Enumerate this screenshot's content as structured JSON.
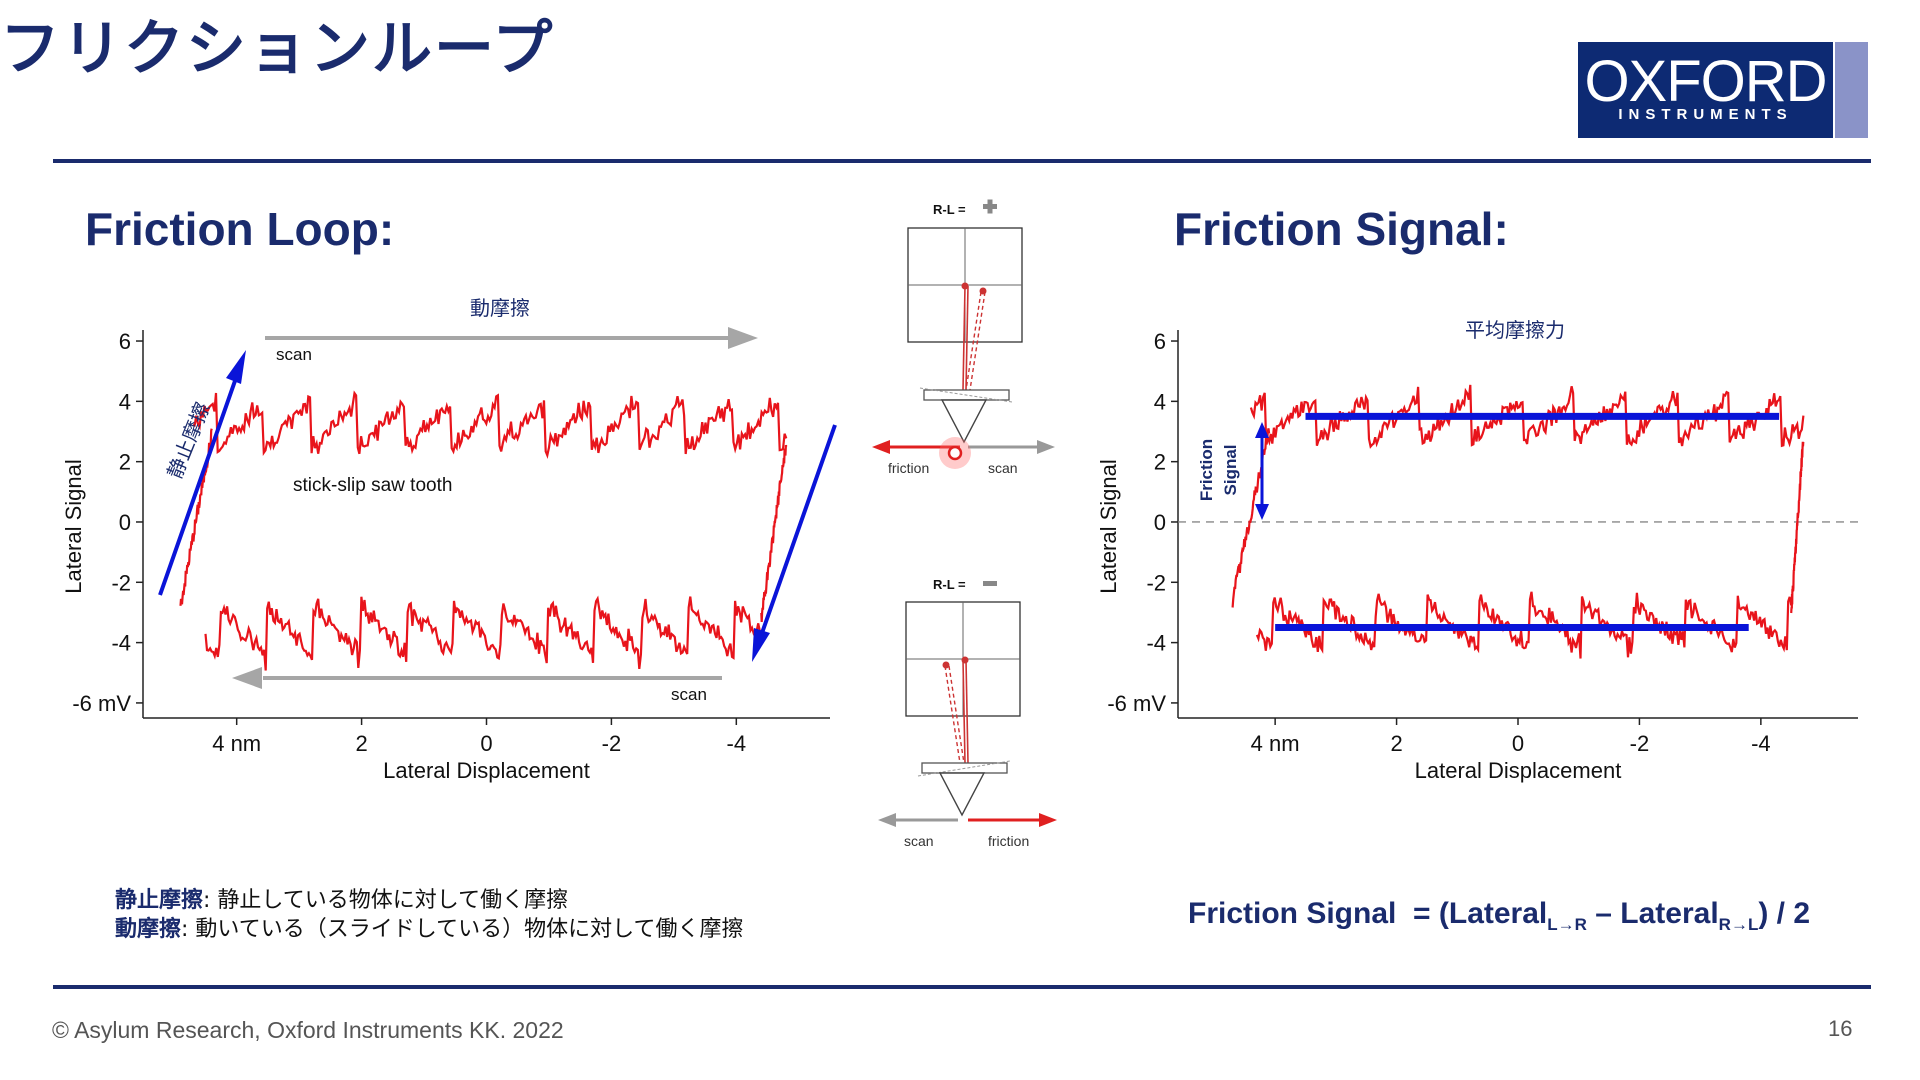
{
  "slide": {
    "title": "フリクションループ",
    "page_number": "16",
    "copyright": "© Asylum Research, Oxford Instruments KK. 2022"
  },
  "logo": {
    "brand": "OXFORD",
    "sub": "INSTRUMENTS",
    "color": "#0d2a73"
  },
  "left": {
    "section_title": "Friction Loop:",
    "annotations": {
      "kinetic": "動摩擦",
      "static": "静止摩擦",
      "scan_top": "scan",
      "scan_bottom": "scan",
      "sawtooth": "stick-slip saw tooth"
    }
  },
  "right": {
    "section_title": "Friction Signal:",
    "annotations": {
      "average": "平均摩擦力",
      "friction_signal": [
        "Friction",
        "Signal"
      ]
    }
  },
  "diagram": {
    "top": {
      "label": "R-L =",
      "friction": "friction",
      "scan": "scan"
    },
    "bottom": {
      "label": "R-L =",
      "friction": "friction",
      "scan": "scan"
    }
  },
  "definitions": [
    {
      "term": "静止摩擦",
      "text": ": 静止している物体に対して働く摩擦"
    },
    {
      "term": "動摩擦",
      "text": ": 動いている（スライドしている）物体に対して働く摩擦"
    }
  ],
  "formula": {
    "lhs": "Friction Signal",
    "eq": "= (Lateral",
    "sub1": "L→R",
    "minus": " – Lateral",
    "sub2": "R→L",
    "tail": ") / 2"
  },
  "chart_data": [
    {
      "type": "line",
      "xlabel": "Lateral Displacement",
      "ylabel": "Lateral Signal",
      "x_ticks": [
        "4 nm",
        "2",
        "0",
        "-2",
        "-4"
      ],
      "x_tick_values": [
        4,
        2,
        0,
        -2,
        -4
      ],
      "y_ticks": [
        "6",
        "4",
        "2",
        "0",
        "-2",
        "-4",
        "-6 mV"
      ],
      "y_tick_values": [
        6,
        4,
        2,
        0,
        -2,
        -4,
        -6
      ],
      "xlim": [
        5.5,
        -5.5
      ],
      "ylim": [
        -6.5,
        6.2
      ],
      "line_color": "#e8141b",
      "trace": {
        "upper_mean": 3.2,
        "lower_mean": -3.6,
        "tooth_amplitude": 1.6,
        "tooth_period_nm": 0.75,
        "upper_x_range": [
          4.7,
          -4.8
        ],
        "lower_x_range": [
          4.5,
          -4.4
        ],
        "seed": 7
      }
    },
    {
      "type": "line",
      "xlabel": "Lateral Displacement",
      "ylabel": "Lateral Signal",
      "x_ticks": [
        "4 nm",
        "2",
        "0",
        "-2",
        "-4"
      ],
      "x_tick_values": [
        4,
        2,
        0,
        -2,
        -4
      ],
      "y_ticks": [
        "6",
        "4",
        "2",
        "0",
        "-2",
        "-4",
        "-6 mV"
      ],
      "y_tick_values": [
        6,
        4,
        2,
        0,
        -2,
        -4,
        -6
      ],
      "xlim": [
        5.6,
        -5.6
      ],
      "ylim": [
        -6.5,
        6.2
      ],
      "line_color": "#e8141b",
      "zero_line": true,
      "trace": {
        "upper_mean": 3.4,
        "lower_mean": -3.4,
        "tooth_amplitude": 1.5,
        "tooth_period_nm": 0.85,
        "upper_x_range": [
          4.4,
          -4.7
        ],
        "lower_x_range": [
          4.3,
          -4.5
        ],
        "seed": 13
      },
      "mean_lines": [
        {
          "name": "upper",
          "y": 3.5,
          "x_range": [
            3.5,
            -4.3
          ]
        },
        {
          "name": "lower",
          "y": -3.5,
          "x_range": [
            4.0,
            -3.8
          ]
        }
      ],
      "mean_line_color": "#0a14d8"
    }
  ]
}
